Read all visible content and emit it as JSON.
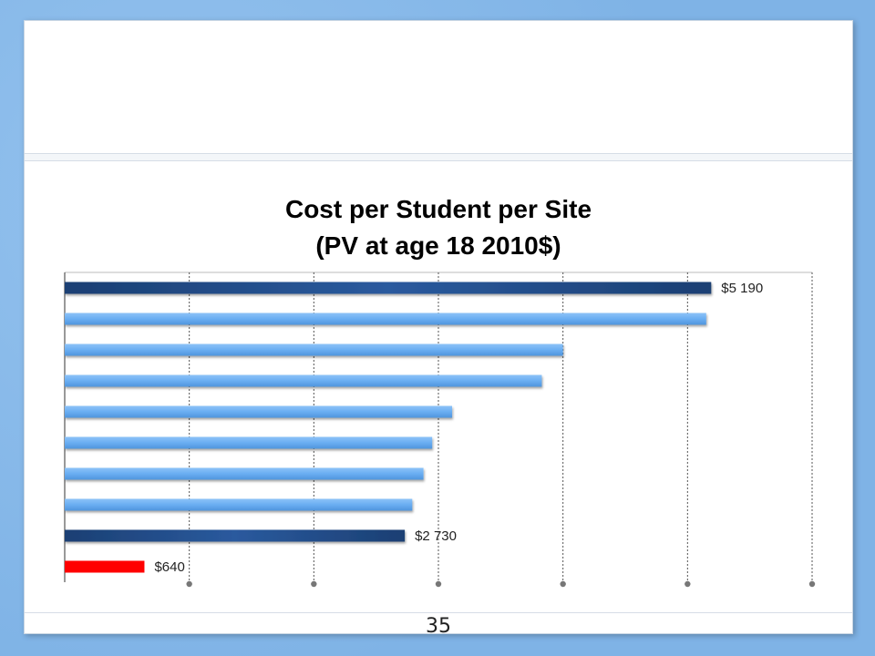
{
  "slide": {
    "page_number": "35"
  },
  "colors": {
    "frame": "#7fb3e6",
    "highlight_bar": "#1f4e8c",
    "other_bar": "#6aaef2",
    "lowest_bar": "#ff0000",
    "gridline": "#555555"
  },
  "chart_data": {
    "type": "bar",
    "orientation": "horizontal",
    "title": "Cost per Student per Site",
    "subtitle": "(PV at age 18 2010$)",
    "xlabel": "",
    "ylabel": "",
    "xlim": [
      0,
      6000
    ],
    "grid": true,
    "legend": "none",
    "bars": [
      {
        "value": 5190,
        "label": "$5 190",
        "style": "dark"
      },
      {
        "value": 5150,
        "label": "",
        "style": "light"
      },
      {
        "value": 4000,
        "label": "",
        "style": "light"
      },
      {
        "value": 3830,
        "label": "",
        "style": "light"
      },
      {
        "value": 3110,
        "label": "",
        "style": "light"
      },
      {
        "value": 2950,
        "label": "",
        "style": "light"
      },
      {
        "value": 2880,
        "label": "",
        "style": "light"
      },
      {
        "value": 2790,
        "label": "",
        "style": "light"
      },
      {
        "value": 2730,
        "label": "$2 730",
        "style": "dark"
      },
      {
        "value": 640,
        "label": "$640",
        "style": "red"
      }
    ]
  }
}
